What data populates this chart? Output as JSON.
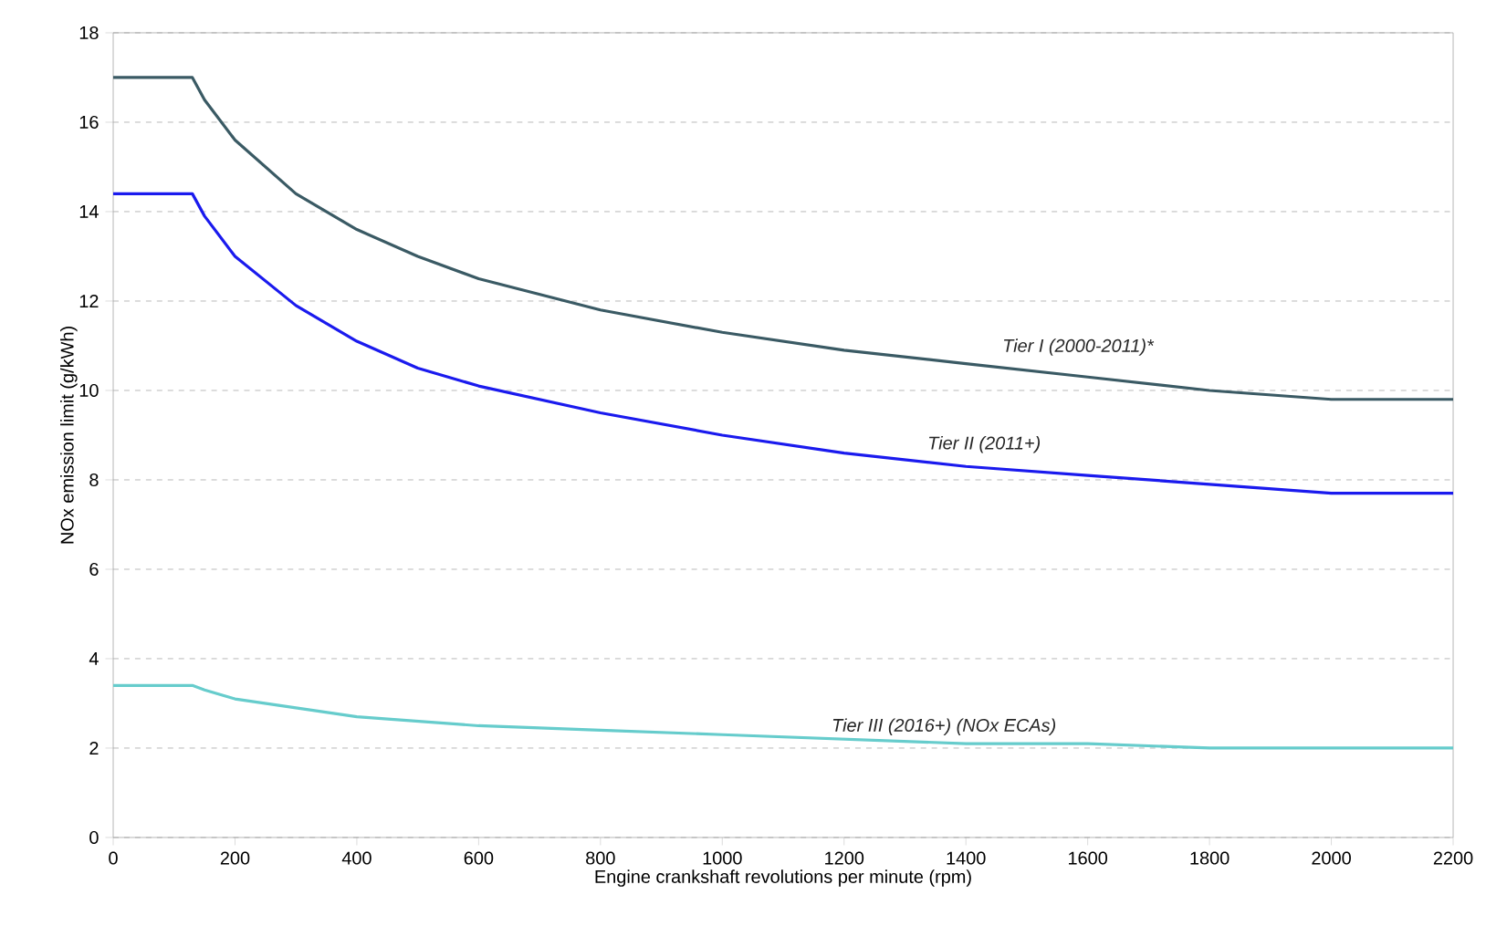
{
  "chart_data": {
    "type": "line",
    "xlabel": "Engine crankshaft revolutions per minute (rpm)",
    "ylabel": "NOx emission limit (g/kWh)",
    "x": [
      0,
      130,
      150,
      200,
      300,
      400,
      500,
      600,
      800,
      1000,
      1200,
      1400,
      1600,
      1800,
      2000,
      2200
    ],
    "series": [
      {
        "name": "Tier I (2000-2011)*",
        "color": "#3a5a64",
        "values": [
          17,
          17,
          16.5,
          15.6,
          14.4,
          13.6,
          13.0,
          12.5,
          11.8,
          11.3,
          10.9,
          10.6,
          10.3,
          10.0,
          9.8,
          9.8
        ]
      },
      {
        "name": "Tier II (2011+)",
        "color": "#1a1aee",
        "values": [
          14.4,
          14.4,
          13.9,
          13.0,
          11.9,
          11.1,
          10.5,
          10.1,
          9.5,
          9.0,
          8.6,
          8.3,
          8.1,
          7.9,
          7.7,
          7.7
        ]
      },
      {
        "name": "Tier III (2016+)  (NOx ECAs)",
        "color": "#66cccc",
        "values": [
          3.4,
          3.4,
          3.3,
          3.1,
          2.9,
          2.7,
          2.6,
          2.5,
          2.4,
          2.3,
          2.2,
          2.1,
          2.1,
          2.0,
          2.0,
          2.0
        ]
      }
    ],
    "xlim": [
      0,
      2200
    ],
    "xticks": [
      0,
      200,
      400,
      600,
      800,
      1000,
      1200,
      1400,
      1600,
      1800,
      2000,
      2200
    ],
    "ylim": [
      0,
      18
    ],
    "yticks": [
      0,
      2,
      4,
      6,
      8,
      10,
      12,
      14,
      16,
      18
    ],
    "grid": "y",
    "legend": false,
    "line_style": "solid"
  }
}
